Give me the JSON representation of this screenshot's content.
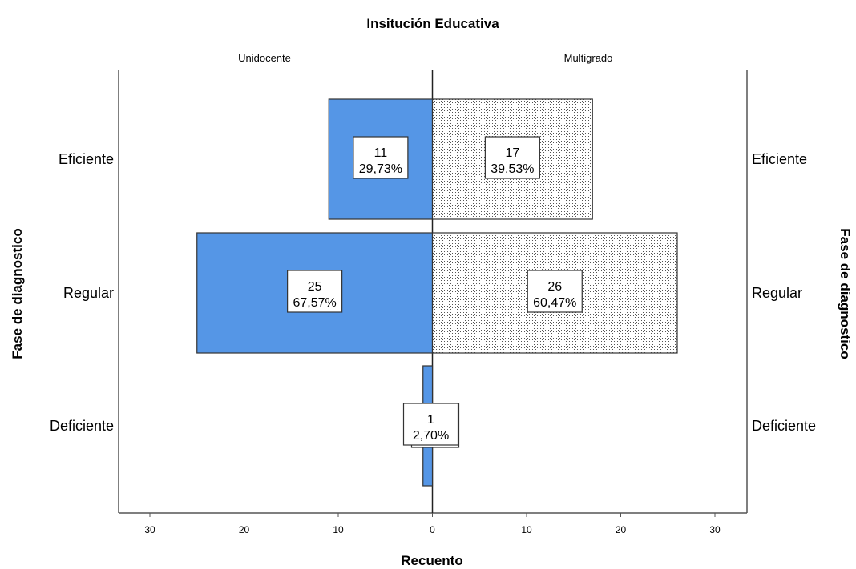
{
  "chart_data": {
    "type": "bar",
    "orientation": "horizontal",
    "layout": "back-to-back",
    "title": "Insitución Educativa",
    "xlabel": "Recuento",
    "ylabel": "Fase de diagnostico",
    "categories": [
      "Eficiente",
      "Regular",
      "Deficiente"
    ],
    "xlim": [
      0,
      30
    ],
    "x_ticks": [
      "30",
      "20",
      "10",
      "0",
      "10",
      "20",
      "30"
    ],
    "series": [
      {
        "name": "Unidocente",
        "side": "left",
        "color": "#5596e6",
        "pattern": "solid",
        "values": [
          11,
          25,
          1
        ],
        "labels": [
          "11",
          "25",
          "1"
        ],
        "percent_labels": [
          "29,73%",
          "67,57%",
          "2,70%"
        ]
      },
      {
        "name": "Multigrado",
        "side": "right",
        "color": "#ffffff",
        "pattern": "dotted",
        "values": [
          17,
          26,
          0
        ],
        "labels": [
          "17",
          "26",
          ""
        ],
        "percent_labels": [
          "39,53%",
          "60,47%",
          ""
        ]
      }
    ]
  }
}
